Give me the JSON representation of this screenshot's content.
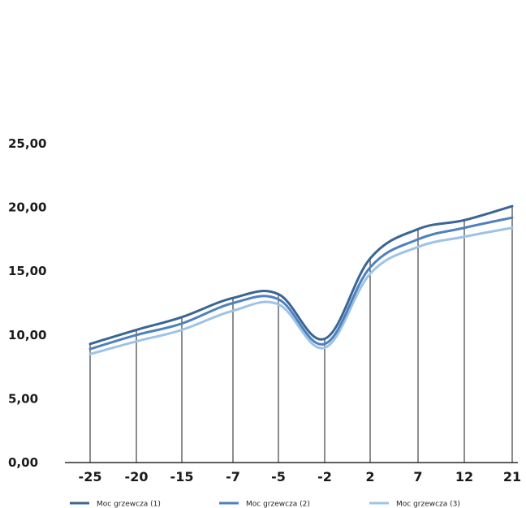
{
  "chart_data": {
    "type": "line",
    "categories": [
      "-25",
      "-20",
      "-15",
      "-7",
      "-5",
      "-2",
      "2",
      "7",
      "12",
      "21"
    ],
    "y_tick_labels": [
      "0,00",
      "5,00",
      "10,00",
      "15,00",
      "20,00",
      "25,00"
    ],
    "ylim": [
      0,
      25
    ],
    "grid": "vertical lines at each category",
    "legend_position": "bottom",
    "series": [
      {
        "name": "Moc grzewcza (1)",
        "color": "#3b6593",
        "values": [
          9.3,
          10.4,
          11.4,
          12.9,
          13.2,
          9.7,
          16.0,
          18.3,
          19.0,
          20.1
        ]
      },
      {
        "name": "Moc grzewcza (2)",
        "color": "#4f81bd",
        "values": [
          8.9,
          10.0,
          10.9,
          12.5,
          12.8,
          9.3,
          15.3,
          17.5,
          18.4,
          19.2
        ]
      },
      {
        "name": "Moc grzewcza (3)",
        "color": "#9dc3e6",
        "values": [
          8.5,
          9.5,
          10.4,
          11.9,
          12.4,
          9.0,
          14.8,
          16.9,
          17.7,
          18.4
        ]
      }
    ]
  }
}
